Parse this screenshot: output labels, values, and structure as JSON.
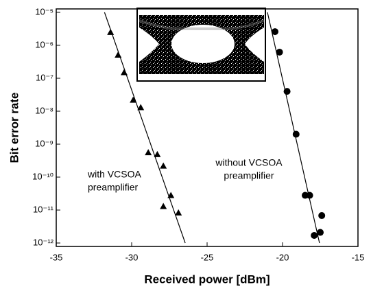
{
  "chart_data": {
    "type": "scatter",
    "x_label": "Received power [dBm]",
    "y_label": "Bit error rate",
    "xlim": [
      -35,
      -15
    ],
    "xticks": [
      -35,
      -30,
      -25,
      -20,
      -15
    ],
    "ylim": [
      1e-12,
      1e-05
    ],
    "log_y": true,
    "yticks": [
      {
        "value": 1e-05,
        "label": "10⁻⁵"
      },
      {
        "value": 1e-06,
        "label": "10⁻⁶"
      },
      {
        "value": 1e-07,
        "label": "10⁻⁷"
      },
      {
        "value": 1e-08,
        "label": "10⁻⁸"
      },
      {
        "value": 1e-09,
        "label": "10⁻⁹"
      },
      {
        "value": 1e-10,
        "label": "10⁻¹⁰"
      },
      {
        "value": 1e-11,
        "label": "10⁻¹¹"
      },
      {
        "value": 1e-12,
        "label": "10⁻¹²"
      }
    ],
    "series": [
      {
        "mode": "markers",
        "marker": "triangle",
        "color": "#000000",
        "x": [
          -31.4,
          -30.9,
          -30.5,
          -29.9,
          -29.4,
          -28.9,
          -28.3,
          -27.9,
          -27.4,
          -27.9,
          -26.9
        ],
        "values": [
          2.5e-06,
          5.1e-07,
          1.5e-07,
          2.2e-08,
          1.3e-08,
          5.6e-10,
          4.9e-10,
          2.2e-10,
          2.8e-11,
          1.3e-11,
          8.3e-12
        ]
      },
      {
        "mode": "markers",
        "marker": "circle",
        "color": "#000000",
        "x": [
          -20.5,
          -20.2,
          -19.7,
          -19.1,
          -18.5,
          -18.2,
          -17.4,
          -17.9,
          -17.5
        ],
        "values": [
          2.6e-06,
          6.2e-07,
          4e-08,
          2e-09,
          2.8e-11,
          2.8e-11,
          6.8e-12,
          1.7e-12,
          2.1e-12
        ]
      },
      {
        "mode": "line",
        "color": "#000000",
        "x": [
          -31.8,
          -26.45
        ],
        "values": [
          1e-05,
          1e-12
        ]
      },
      {
        "mode": "line",
        "color": "#000000",
        "x": [
          -21.0,
          -17.55
        ],
        "values": [
          1e-05,
          1e-12
        ]
      }
    ],
    "annotations": [
      [
        "with VCSOA",
        "preamplifier"
      ],
      [
        "without VCSOA",
        "preamplifier"
      ]
    ]
  }
}
